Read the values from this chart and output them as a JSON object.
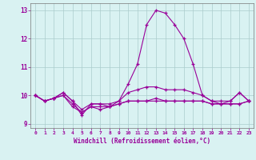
{
  "hours": [
    0,
    1,
    2,
    3,
    4,
    5,
    6,
    7,
    8,
    9,
    10,
    11,
    12,
    13,
    14,
    15,
    16,
    17,
    18,
    19,
    20,
    21,
    22,
    23
  ],
  "line1": [
    10.0,
    9.8,
    9.9,
    10.1,
    9.8,
    9.3,
    9.7,
    9.7,
    9.6,
    9.8,
    10.4,
    11.1,
    12.5,
    13.0,
    12.9,
    12.5,
    12.0,
    11.1,
    10.0,
    9.8,
    9.7,
    9.8,
    10.1,
    9.8
  ],
  "line2": [
    10.0,
    9.8,
    9.9,
    10.1,
    9.8,
    9.5,
    9.7,
    9.7,
    9.7,
    9.8,
    10.1,
    10.2,
    10.3,
    10.3,
    10.2,
    10.2,
    10.2,
    10.1,
    10.0,
    9.8,
    9.8,
    9.8,
    10.1,
    9.8
  ],
  "line3": [
    10.0,
    9.8,
    9.9,
    10.0,
    9.7,
    9.4,
    9.6,
    9.6,
    9.6,
    9.7,
    9.8,
    9.8,
    9.8,
    9.9,
    9.8,
    9.8,
    9.8,
    9.8,
    9.8,
    9.7,
    9.7,
    9.7,
    9.7,
    9.8
  ],
  "line4": [
    10.0,
    9.8,
    9.9,
    10.0,
    9.6,
    9.4,
    9.6,
    9.5,
    9.6,
    9.7,
    9.8,
    9.8,
    9.8,
    9.8,
    9.8,
    9.8,
    9.8,
    9.8,
    9.8,
    9.7,
    9.7,
    9.7,
    9.7,
    9.8
  ],
  "line_color": "#990099",
  "bg_color": "#d9f2f2",
  "grid_color": "#aacccc",
  "label_color": "#990099",
  "xlabel": "Windchill (Refroidissement éolien,°C)",
  "ylim": [
    8.85,
    13.25
  ],
  "yticks": [
    9,
    10,
    11,
    12,
    13
  ],
  "xlim": [
    -0.5,
    23.5
  ]
}
